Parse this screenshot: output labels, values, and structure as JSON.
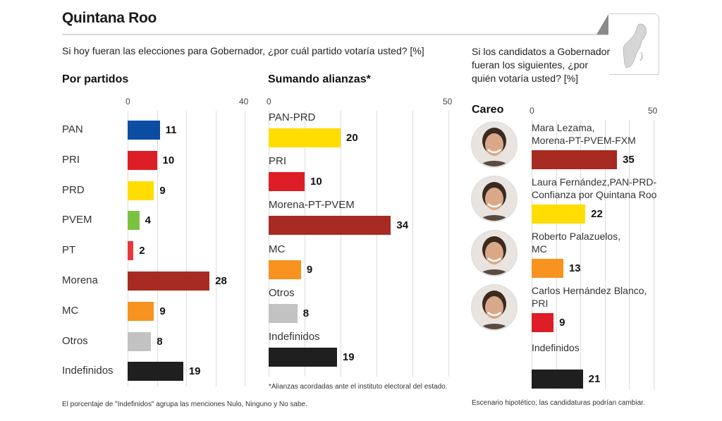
{
  "header": {
    "title": "Quintana Roo",
    "map_icon": "quintana-roo-map-icon"
  },
  "question_parties": "Si hoy fueran las elecciones para Gobernador, ¿por cuál partido votaría usted? [%]",
  "question_candidates": "Si los candidatos a Gobernador fueran los siguientes, ¿por quién votaría usted? [%]",
  "notes": {
    "indefinidos": "El porcentaje de \"Indefinidos\" agrupa las menciones Nulo, Ninguno y No sabe.",
    "alianzas": "*Alianzas acordadas ante el instituto electoral del estado.",
    "escenario": "Escenario hipotético; las candidaturas podrían cambiar."
  },
  "chart_data": [
    {
      "type": "bar",
      "orientation": "horizontal",
      "title": "Por partidos",
      "xlim": [
        0,
        40
      ],
      "ticks": [
        0,
        10,
        20,
        30,
        40
      ],
      "tick_labels": [
        "0",
        "40"
      ],
      "grid": true,
      "categories": [
        "PAN",
        "PRI",
        "PRD",
        "PVEM",
        "PT",
        "Morena",
        "MC",
        "Otros",
        "Indefinidos"
      ],
      "values": [
        11,
        10,
        9,
        4,
        2,
        28,
        9,
        8,
        19
      ],
      "colors": [
        "#0a4da2",
        "#dd1e26",
        "#ffdd00",
        "#7cc242",
        "#e8383d",
        "#a72b22",
        "#f7931e",
        "#c2c2c2",
        "#1f1f1f"
      ]
    },
    {
      "type": "bar",
      "orientation": "horizontal",
      "title": "Sumando alianzas*",
      "xlim": [
        0,
        50
      ],
      "ticks": [
        0,
        10,
        20,
        30,
        40,
        50
      ],
      "tick_labels": [
        "0",
        "50"
      ],
      "grid": true,
      "categories": [
        "PAN-PRD",
        "PRI",
        "Morena-PT-PVEM",
        "MC",
        "Otros",
        "Indefinidos"
      ],
      "values": [
        20,
        10,
        34,
        9,
        8,
        19
      ],
      "colors": [
        "#ffdd00",
        "#dd1e26",
        "#a72b22",
        "#f7931e",
        "#c2c2c2",
        "#1f1f1f"
      ]
    },
    {
      "type": "bar",
      "orientation": "horizontal",
      "title": "Careo",
      "xlim": [
        0,
        50
      ],
      "ticks": [
        0,
        10,
        20,
        30,
        40,
        50
      ],
      "tick_labels": [
        "0",
        "50"
      ],
      "grid": true,
      "categories": [
        [
          "Mara Lezama,",
          "Morena-PT-PVEM-FXM"
        ],
        [
          "Laura Fernández,PAN-PRD-",
          "Confianza por Quintana Roo"
        ],
        [
          "Roberto Palazuelos,",
          "MC"
        ],
        [
          "Carlos Hernández Blanco,",
          "PRI"
        ],
        [
          "Indefinidos"
        ]
      ],
      "values": [
        35,
        22,
        13,
        9,
        21
      ],
      "colors": [
        "#a72b22",
        "#ffdd00",
        "#f7931e",
        "#dd1e26",
        "#1f1f1f"
      ],
      "has_photo": [
        true,
        true,
        true,
        true,
        false
      ]
    }
  ]
}
